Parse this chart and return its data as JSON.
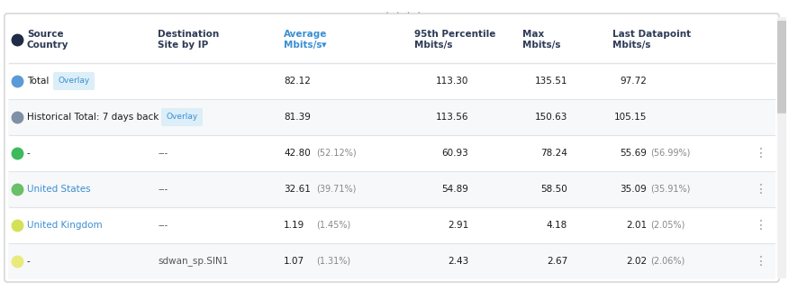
{
  "background_color": "#ffffff",
  "border_color": "#d0d0d0",
  "separator_color": "#e0e4e8",
  "header_text_color": "#2d3a55",
  "header_avg_color": "#3a8fd1",
  "drag_handle_color": "#aaaaaa",
  "scrollbar_thumb_color": "#c8c8c8",
  "scrollbar_track_color": "#f0f0f0",
  "menu_color": "#999999",
  "rows": [
    {
      "dot_color": "#5b9bd5",
      "label": "Total",
      "label_color": "#1a1a1a",
      "overlay": "Overlay",
      "overlay_bg": "#dceef8",
      "overlay_text_color": "#3a8fd1",
      "destination": "",
      "average": "82.12",
      "avg_pct": "",
      "p95": "113.30",
      "max": "135.51",
      "last": "97.72",
      "last_pct": "",
      "has_menu": false,
      "row_bg": "#ffffff"
    },
    {
      "dot_color": "#7f8fa6",
      "label": "Historical Total: 7 days back",
      "label_color": "#1a1a1a",
      "overlay": "Overlay",
      "overlay_bg": "#dceef8",
      "overlay_text_color": "#3a8fd1",
      "destination": "",
      "average": "81.39",
      "avg_pct": "",
      "p95": "113.56",
      "max": "150.63",
      "last": "105.15",
      "last_pct": "",
      "has_menu": false,
      "row_bg": "#f7f8fa"
    },
    {
      "dot_color": "#3dba5e",
      "label": "-",
      "label_color": "#1a1a1a",
      "overlay": "",
      "overlay_bg": "",
      "overlay_text_color": "",
      "destination": "---",
      "average": "42.80",
      "avg_pct": "(52.12%)",
      "p95": "60.93",
      "max": "78.24",
      "last": "55.69",
      "last_pct": "(56.99%)",
      "has_menu": true,
      "row_bg": "#ffffff"
    },
    {
      "dot_color": "#6abf69",
      "label": "United States",
      "label_color": "#3a8fd1",
      "overlay": "",
      "overlay_bg": "",
      "overlay_text_color": "",
      "destination": "---",
      "average": "32.61",
      "avg_pct": "(39.71%)",
      "p95": "54.89",
      "max": "58.50",
      "last": "35.09",
      "last_pct": "(35.91%)",
      "has_menu": true,
      "row_bg": "#f7f8fa"
    },
    {
      "dot_color": "#d4e157",
      "label": "United Kingdom",
      "label_color": "#3a8fd1",
      "overlay": "",
      "overlay_bg": "",
      "overlay_text_color": "",
      "destination": "---",
      "average": "1.19",
      "avg_pct": "(1.45%)",
      "p95": "2.91",
      "max": "4.18",
      "last": "2.01",
      "last_pct": "(2.05%)",
      "has_menu": true,
      "row_bg": "#ffffff"
    },
    {
      "dot_color": "#e8ea7a",
      "label": "-",
      "label_color": "#1a1a1a",
      "overlay": "",
      "overlay_bg": "",
      "overlay_text_color": "",
      "destination": "sdwan_sp.SIN1",
      "average": "1.07",
      "avg_pct": "(1.31%)",
      "p95": "2.43",
      "max": "2.67",
      "last": "2.02",
      "last_pct": "(2.06%)",
      "has_menu": true,
      "row_bg": "#f7f8fa"
    }
  ]
}
